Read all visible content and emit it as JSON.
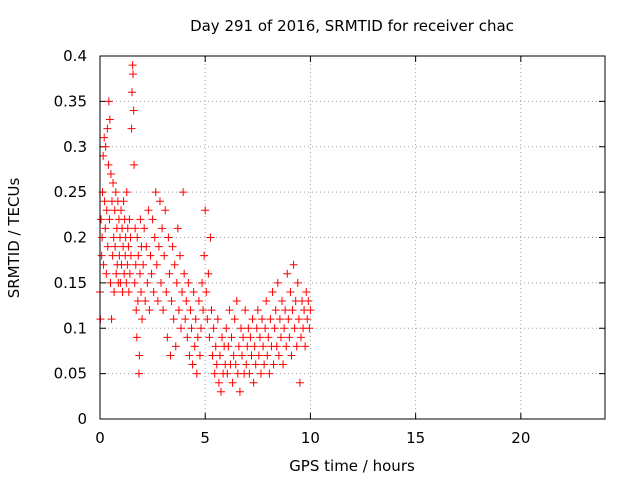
{
  "chart_data": {
    "type": "scatter",
    "title": "Day 291 of 2016, SRMTID for receiver chac",
    "xlabel": "GPS time / hours",
    "ylabel": "SRMTID / TECUs",
    "xlim": [
      0,
      24
    ],
    "ylim": [
      0,
      0.4
    ],
    "xticks": [
      0,
      5,
      10,
      15,
      20
    ],
    "xtick_labels": [
      "0",
      "5",
      "10",
      "15",
      "20"
    ],
    "yticks": [
      0,
      0.05,
      0.1,
      0.15,
      0.2,
      0.25,
      0.3,
      0.35,
      0.4
    ],
    "ytick_labels": [
      "0",
      "0.05",
      "0.1",
      "0.15",
      "0.2",
      "0.25",
      "0.3",
      "0.35",
      "0.4"
    ],
    "grid": true,
    "marker": "+",
    "series": [
      {
        "name": "SRMTID",
        "color": "#ff0000",
        "points": [
          [
            0.0,
            0.14
          ],
          [
            0.02,
            0.11
          ],
          [
            0.05,
            0.22
          ],
          [
            0.08,
            0.18
          ],
          [
            0.1,
            0.2
          ],
          [
            0.12,
            0.25
          ],
          [
            0.15,
            0.29
          ],
          [
            0.17,
            0.17
          ],
          [
            0.2,
            0.31
          ],
          [
            0.22,
            0.24
          ],
          [
            0.25,
            0.21
          ],
          [
            0.27,
            0.3
          ],
          [
            0.3,
            0.16
          ],
          [
            0.32,
            0.23
          ],
          [
            0.35,
            0.32
          ],
          [
            0.37,
            0.19
          ],
          [
            0.4,
            0.28
          ],
          [
            0.42,
            0.35
          ],
          [
            0.45,
            0.22
          ],
          [
            0.47,
            0.33
          ],
          [
            0.5,
            0.15
          ],
          [
            0.52,
            0.27
          ],
          [
            0.55,
            0.11
          ],
          [
            0.57,
            0.24
          ],
          [
            0.6,
            0.18
          ],
          [
            0.62,
            0.26
          ],
          [
            0.65,
            0.2
          ],
          [
            0.67,
            0.14
          ],
          [
            0.7,
            0.23
          ],
          [
            0.72,
            0.19
          ],
          [
            0.75,
            0.25
          ],
          [
            0.77,
            0.16
          ],
          [
            0.8,
            0.21
          ],
          [
            0.82,
            0.17
          ],
          [
            0.85,
            0.24
          ],
          [
            0.87,
            0.15
          ],
          [
            0.9,
            0.22
          ],
          [
            0.92,
            0.18
          ],
          [
            0.95,
            0.2
          ],
          [
            0.97,
            0.15
          ],
          [
            1.0,
            0.23
          ],
          [
            1.02,
            0.17
          ],
          [
            1.05,
            0.21
          ],
          [
            1.07,
            0.14
          ],
          [
            1.1,
            0.19
          ],
          [
            1.12,
            0.24
          ],
          [
            1.15,
            0.16
          ],
          [
            1.17,
            0.22
          ],
          [
            1.2,
            0.18
          ],
          [
            1.22,
            0.2
          ],
          [
            1.25,
            0.15
          ],
          [
            1.27,
            0.25
          ],
          [
            1.3,
            0.17
          ],
          [
            1.32,
            0.21
          ],
          [
            1.35,
            0.19
          ],
          [
            1.37,
            0.14
          ],
          [
            1.4,
            0.22
          ],
          [
            1.42,
            0.16
          ],
          [
            1.45,
            0.2
          ],
          [
            1.47,
            0.18
          ],
          [
            1.5,
            0.32
          ],
          [
            1.52,
            0.36
          ],
          [
            1.55,
            0.39
          ],
          [
            1.57,
            0.38
          ],
          [
            1.6,
            0.34
          ],
          [
            1.62,
            0.28
          ],
          [
            1.65,
            0.15
          ],
          [
            1.67,
            0.21
          ],
          [
            1.7,
            0.17
          ],
          [
            1.72,
            0.12
          ],
          [
            1.75,
            0.09
          ],
          [
            1.77,
            0.2
          ],
          [
            1.8,
            0.13
          ],
          [
            1.82,
            0.18
          ],
          [
            1.85,
            0.05
          ],
          [
            1.87,
            0.07
          ],
          [
            1.9,
            0.16
          ],
          [
            1.92,
            0.22
          ],
          [
            1.95,
            0.14
          ],
          [
            1.97,
            0.19
          ],
          [
            2.0,
            0.11
          ],
          [
            2.05,
            0.17
          ],
          [
            2.1,
            0.21
          ],
          [
            2.15,
            0.13
          ],
          [
            2.2,
            0.19
          ],
          [
            2.25,
            0.15
          ],
          [
            2.3,
            0.23
          ],
          [
            2.35,
            0.12
          ],
          [
            2.4,
            0.18
          ],
          [
            2.45,
            0.16
          ],
          [
            2.5,
            0.22
          ],
          [
            2.55,
            0.14
          ],
          [
            2.6,
            0.2
          ],
          [
            2.65,
            0.25
          ],
          [
            2.7,
            0.17
          ],
          [
            2.75,
            0.13
          ],
          [
            2.8,
            0.19
          ],
          [
            2.85,
            0.24
          ],
          [
            2.9,
            0.15
          ],
          [
            2.95,
            0.21
          ],
          [
            3.0,
            0.12
          ],
          [
            3.05,
            0.18
          ],
          [
            3.1,
            0.23
          ],
          [
            3.15,
            0.14
          ],
          [
            3.2,
            0.09
          ],
          [
            3.25,
            0.2
          ],
          [
            3.3,
            0.16
          ],
          [
            3.35,
            0.07
          ],
          [
            3.4,
            0.13
          ],
          [
            3.45,
            0.19
          ],
          [
            3.5,
            0.11
          ],
          [
            3.55,
            0.17
          ],
          [
            3.6,
            0.08
          ],
          [
            3.65,
            0.15
          ],
          [
            3.7,
            0.21
          ],
          [
            3.75,
            0.12
          ],
          [
            3.8,
            0.18
          ],
          [
            3.85,
            0.1
          ],
          [
            3.9,
            0.14
          ],
          [
            3.95,
            0.25
          ],
          [
            4.0,
            0.16
          ],
          [
            4.05,
            0.11
          ],
          [
            4.1,
            0.13
          ],
          [
            4.15,
            0.09
          ],
          [
            4.2,
            0.15
          ],
          [
            4.25,
            0.07
          ],
          [
            4.3,
            0.12
          ],
          [
            4.35,
            0.1
          ],
          [
            4.4,
            0.06
          ],
          [
            4.45,
            0.14
          ],
          [
            4.5,
            0.08
          ],
          [
            4.55,
            0.11
          ],
          [
            4.6,
            0.05
          ],
          [
            4.65,
            0.09
          ],
          [
            4.7,
            0.13
          ],
          [
            4.75,
            0.07
          ],
          [
            4.8,
            0.1
          ],
          [
            4.85,
            0.15
          ],
          [
            4.9,
            0.12
          ],
          [
            4.95,
            0.18
          ],
          [
            5.0,
            0.23
          ],
          [
            5.05,
            0.14
          ],
          [
            5.1,
            0.11
          ],
          [
            5.15,
            0.16
          ],
          [
            5.2,
            0.09
          ],
          [
            5.25,
            0.2
          ],
          [
            5.3,
            0.12
          ],
          [
            5.35,
            0.07
          ],
          [
            5.4,
            0.1
          ],
          [
            5.45,
            0.05
          ],
          [
            5.5,
            0.08
          ],
          [
            5.55,
            0.06
          ],
          [
            5.6,
            0.11
          ],
          [
            5.65,
            0.04
          ],
          [
            5.7,
            0.07
          ],
          [
            5.75,
            0.03
          ],
          [
            5.8,
            0.09
          ],
          [
            5.85,
            0.05
          ],
          [
            5.9,
            0.08
          ],
          [
            5.95,
            0.06
          ],
          [
            6.0,
            0.1
          ],
          [
            6.05,
            0.05
          ],
          [
            6.1,
            0.08
          ],
          [
            6.15,
            0.12
          ],
          [
            6.2,
            0.06
          ],
          [
            6.25,
            0.09
          ],
          [
            6.3,
            0.04
          ],
          [
            6.35,
            0.07
          ],
          [
            6.4,
            0.11
          ],
          [
            6.45,
            0.06
          ],
          [
            6.5,
            0.13
          ],
          [
            6.55,
            0.05
          ],
          [
            6.6,
            0.08
          ],
          [
            6.65,
            0.03
          ],
          [
            6.7,
            0.1
          ],
          [
            6.75,
            0.07
          ],
          [
            6.8,
            0.09
          ],
          [
            6.85,
            0.05
          ],
          [
            6.9,
            0.12
          ],
          [
            6.95,
            0.06
          ],
          [
            7.0,
            0.08
          ],
          [
            7.05,
            0.1
          ],
          [
            7.1,
            0.05
          ],
          [
            7.15,
            0.09
          ],
          [
            7.2,
            0.07
          ],
          [
            7.25,
            0.11
          ],
          [
            7.3,
            0.04
          ],
          [
            7.35,
            0.08
          ],
          [
            7.4,
            0.06
          ],
          [
            7.45,
            0.1
          ],
          [
            7.5,
            0.12
          ],
          [
            7.55,
            0.07
          ],
          [
            7.6,
            0.09
          ],
          [
            7.65,
            0.05
          ],
          [
            7.7,
            0.11
          ],
          [
            7.75,
            0.08
          ],
          [
            7.8,
            0.06
          ],
          [
            7.85,
            0.1
          ],
          [
            7.9,
            0.13
          ],
          [
            7.95,
            0.07
          ],
          [
            8.0,
            0.09
          ],
          [
            8.05,
            0.05
          ],
          [
            8.1,
            0.11
          ],
          [
            8.15,
            0.08
          ],
          [
            8.2,
            0.14
          ],
          [
            8.25,
            0.06
          ],
          [
            8.3,
            0.1
          ],
          [
            8.35,
            0.12
          ],
          [
            8.4,
            0.08
          ],
          [
            8.45,
            0.15
          ],
          [
            8.5,
            0.07
          ],
          [
            8.55,
            0.11
          ],
          [
            8.6,
            0.09
          ],
          [
            8.65,
            0.13
          ],
          [
            8.7,
            0.06
          ],
          [
            8.75,
            0.1
          ],
          [
            8.8,
            0.12
          ],
          [
            8.85,
            0.08
          ],
          [
            8.9,
            0.16
          ],
          [
            8.95,
            0.11
          ],
          [
            9.0,
            0.09
          ],
          [
            9.05,
            0.14
          ],
          [
            9.1,
            0.07
          ],
          [
            9.15,
            0.12
          ],
          [
            9.2,
            0.17
          ],
          [
            9.25,
            0.1
          ],
          [
            9.3,
            0.13
          ],
          [
            9.35,
            0.08
          ],
          [
            9.4,
            0.15
          ],
          [
            9.45,
            0.11
          ],
          [
            9.5,
            0.04
          ],
          [
            9.55,
            0.09
          ],
          [
            9.6,
            0.13
          ],
          [
            9.65,
            0.1
          ],
          [
            9.7,
            0.12
          ],
          [
            9.75,
            0.08
          ],
          [
            9.8,
            0.14
          ],
          [
            9.85,
            0.11
          ],
          [
            9.9,
            0.13
          ],
          [
            9.95,
            0.1
          ],
          [
            10.0,
            0.12
          ]
        ]
      }
    ]
  }
}
